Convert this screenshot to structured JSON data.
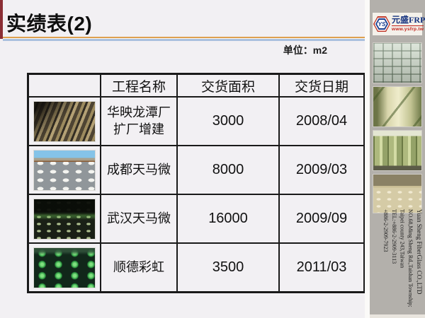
{
  "slide": {
    "title": "实绩表(2)",
    "unit_label": "单位：m2"
  },
  "table": {
    "column_headers": [
      "工程名称",
      "交货面积",
      "交货日期"
    ],
    "rows": [
      {
        "photo": "factory-interior-diagonal-beams",
        "name": "华映龙潭厂扩厂增建",
        "area": "3000",
        "date": "2008/04"
      },
      {
        "photo": "construction-site-white-dome-molds",
        "name": "成都天马微",
        "area": "8000",
        "date": "2009/03"
      },
      {
        "photo": "dark-interior-green-lit-dotted-floor",
        "name": "武汉天马微",
        "area": "16000",
        "date": "2009/09"
      },
      {
        "photo": "rows-of-green-domes",
        "name": "顺德彩虹",
        "area": "3500",
        "date": "2011/03"
      }
    ]
  },
  "sidebar": {
    "logo": {
      "monogram": "YS",
      "brand": "元盛FRP",
      "website": "www.ysfrp.tw"
    },
    "photos": [
      "coffered-ceiling",
      "frp-tank-with-pipes",
      "storage-tanks",
      "dotted-floor-interior"
    ],
    "contact_lines": [
      "Yuan Sheng FiberGlass CO.,LTD",
      "NO.68,Ming Sheng Rd.,Taishan Township;",
      "Taipei county 243,Taiwan",
      "TEL:+886-2-2909-3113",
      "+886-2-2909-7923"
    ]
  },
  "colors": {
    "accent_maroon": "#8b2e35",
    "rule_orange": "#dd9f4f",
    "rule_blue": "#a9c0de",
    "sidebar_gray": "#b3b0ab",
    "brand_blue": "#1b3f8f",
    "url_red": "#c22017"
  }
}
